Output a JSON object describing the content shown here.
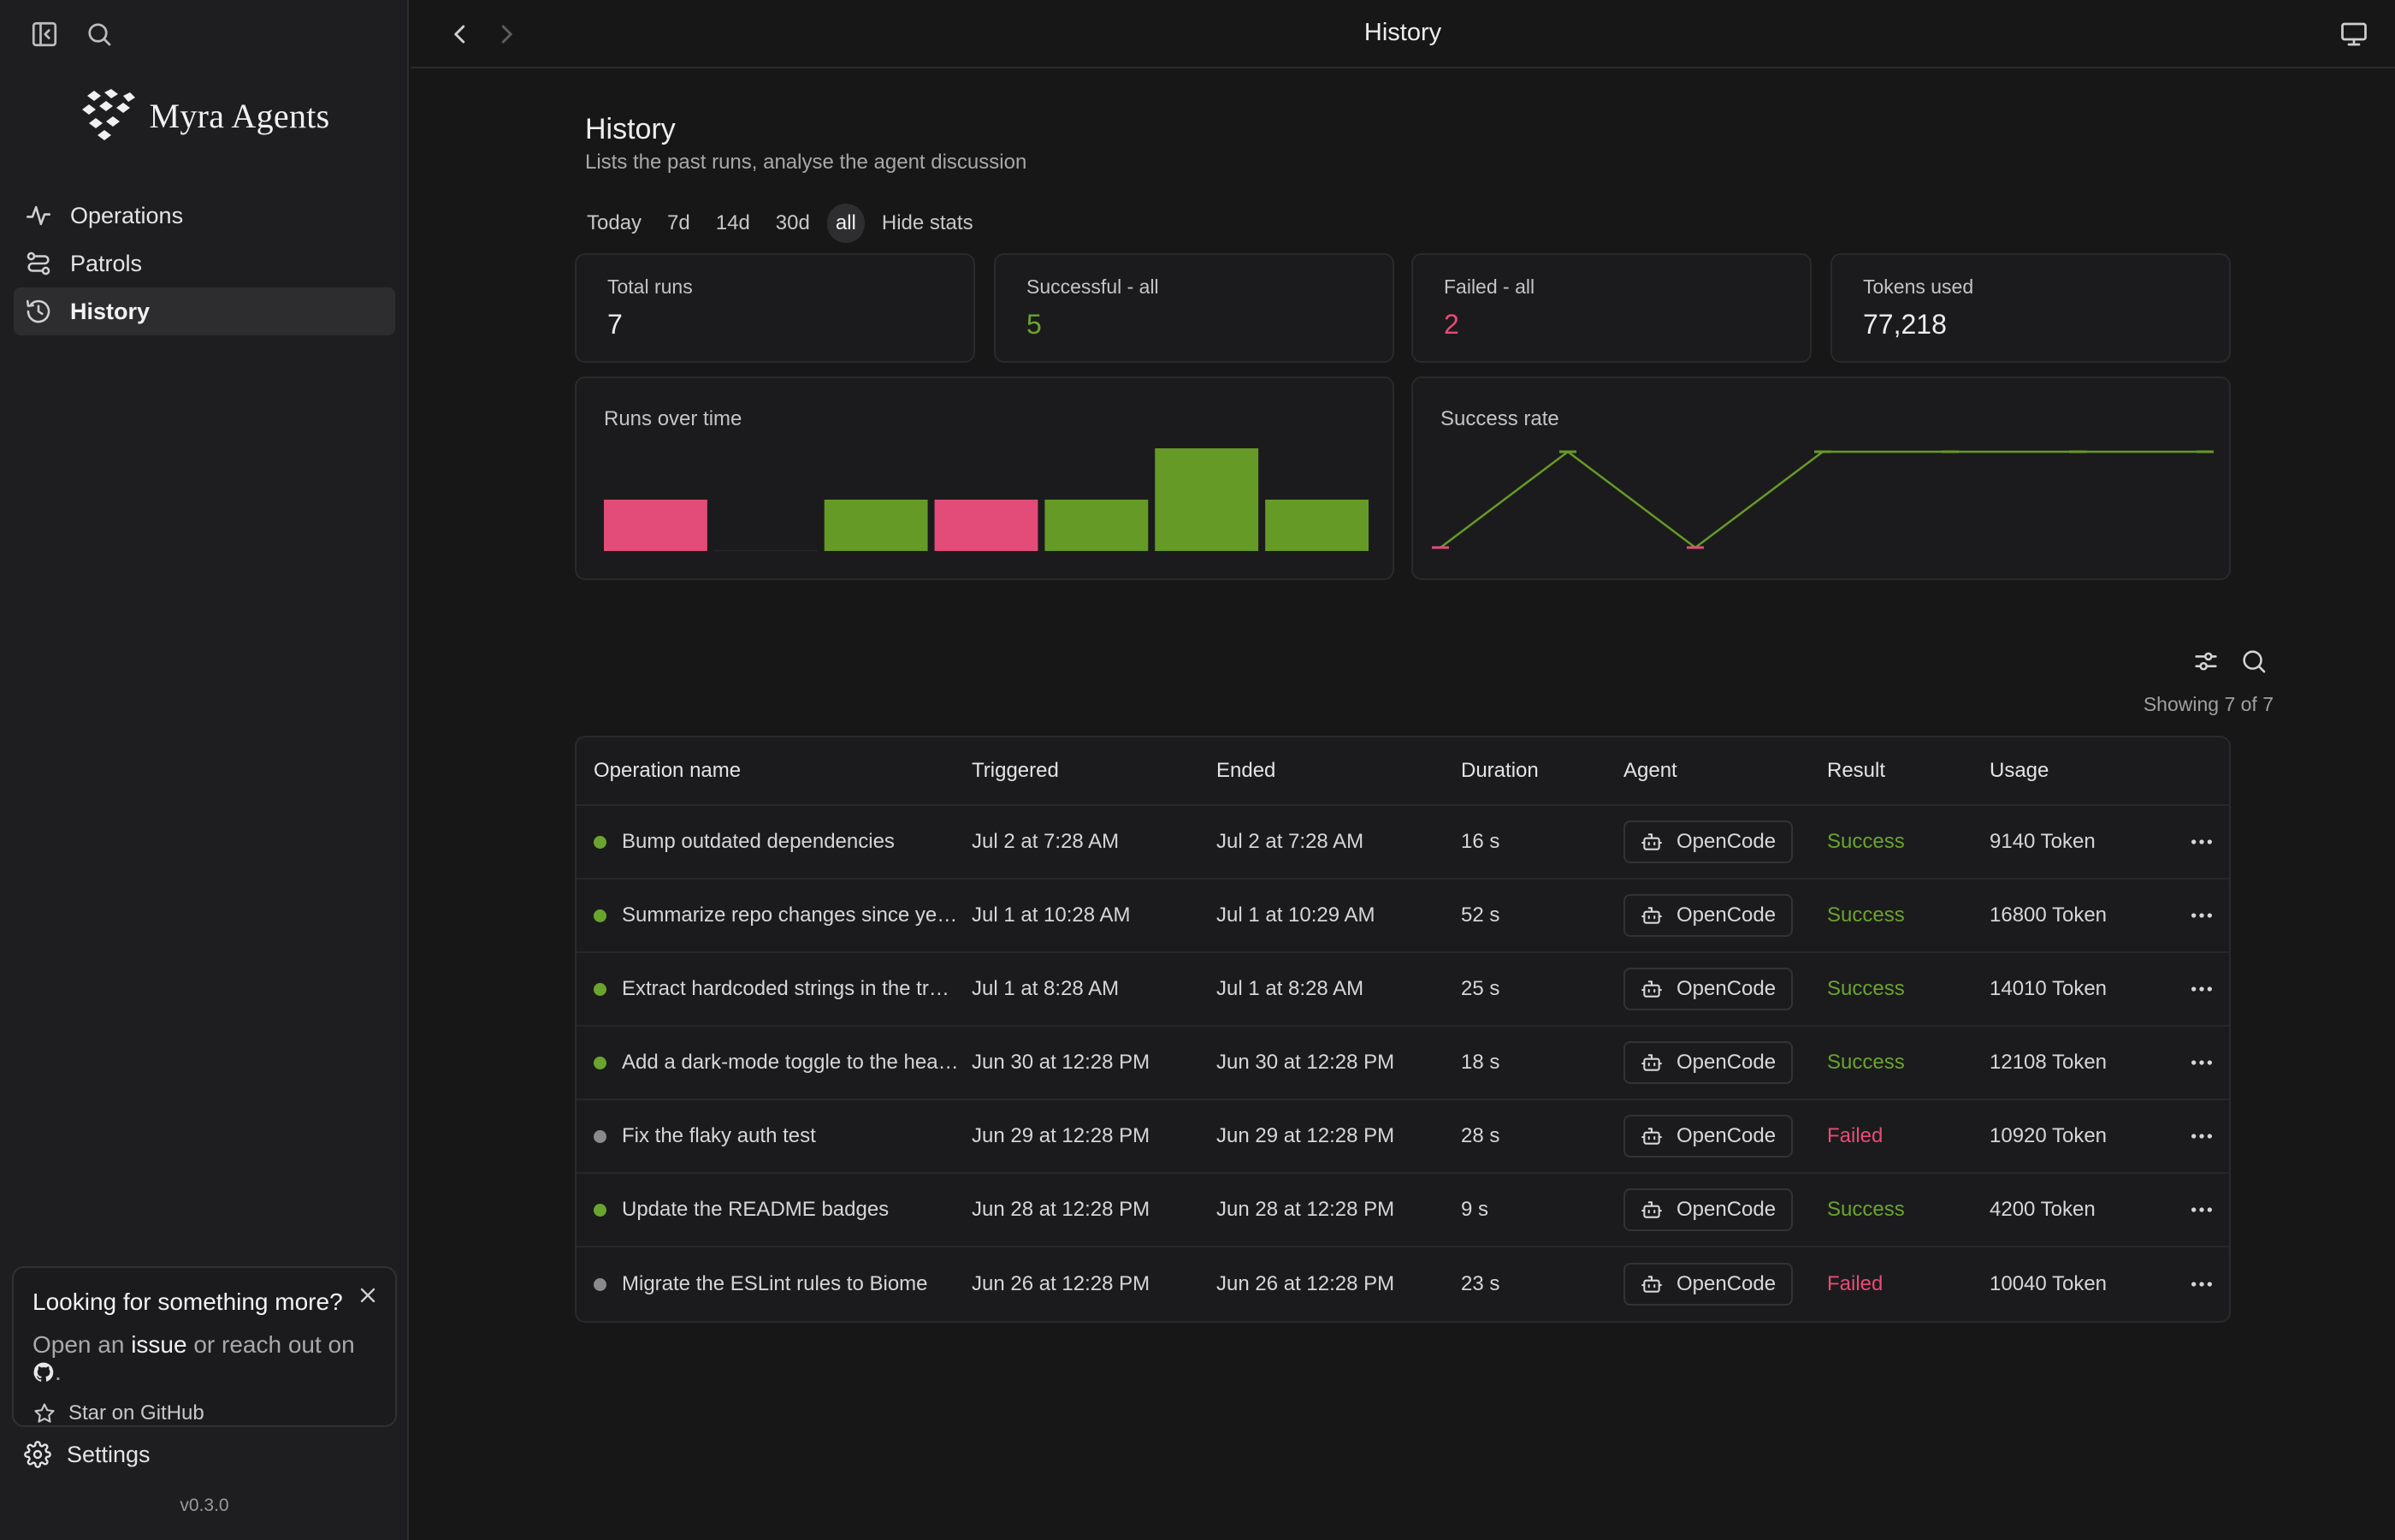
{
  "app": {
    "name": "Myra Agents",
    "version": "v0.3.0"
  },
  "sidebar": {
    "items": [
      {
        "label": "Operations",
        "icon": "activity-icon"
      },
      {
        "label": "Patrols",
        "icon": "route-icon"
      },
      {
        "label": "History",
        "icon": "history-icon",
        "active": true
      }
    ],
    "settings_label": "Settings",
    "promo": {
      "title": "Looking for something more?",
      "text_before": "Open an",
      "link_issue": "issue",
      "text_middle": "or reach out on",
      "text_after": ".",
      "star_label": "Star on GitHub"
    }
  },
  "topbar": {
    "title": "History"
  },
  "page": {
    "title": "History",
    "subtitle": "Lists the past runs, analyse the agent discussion"
  },
  "filters": [
    "Today",
    "7d",
    "14d",
    "30d",
    "all",
    "Hide stats"
  ],
  "active_filter": "all",
  "stats": [
    {
      "label": "Total runs",
      "value": "7"
    },
    {
      "label": "Successful - all",
      "value": "5"
    },
    {
      "label": "Failed - all",
      "value": "2"
    },
    {
      "label": "Tokens used",
      "value": "77,218"
    }
  ],
  "colors": {
    "success": "#6aa42e",
    "failed": "#e84b75",
    "neutral": "#8a8a8a",
    "bar_success": "#669a26",
    "bar_failed": "#e34c78"
  },
  "chart_data": [
    {
      "type": "bar",
      "title": "Runs over time",
      "categories": [
        "",
        "",
        "",
        "",
        "",
        "",
        ""
      ],
      "series": [
        {
          "values": [
            0,
            0,
            1,
            0,
            1,
            2,
            1
          ],
          "color": "#669a26"
        },
        {
          "values": [
            1,
            0,
            0,
            1,
            0,
            0,
            0
          ],
          "color": "#e34c78"
        }
      ],
      "ylim": [
        0,
        2
      ]
    },
    {
      "type": "line",
      "title": "Success rate",
      "values": [
        0,
        1,
        0,
        1,
        1,
        1,
        1
      ],
      "ylim": [
        0,
        1
      ]
    }
  ],
  "table": {
    "showing": "Showing 7 of 7",
    "columns": [
      "Operation name",
      "Triggered",
      "Ended",
      "Duration",
      "Agent",
      "Result",
      "Usage"
    ],
    "rows": [
      {
        "name": "Bump outdated dependencies",
        "triggered": "Jul 2 at 7:28 AM",
        "ended": "Jul 2 at 7:28 AM",
        "duration": "16 s",
        "agent": "OpenCode",
        "result": "Success",
        "usage": "9140 Token",
        "status": "success"
      },
      {
        "name": "Summarize repo changes since yes…",
        "triggered": "Jul 1 at 10:28 AM",
        "ended": "Jul 1 at 10:29 AM",
        "duration": "52 s",
        "agent": "OpenCode",
        "result": "Success",
        "usage": "16800 Token",
        "status": "success"
      },
      {
        "name": "Extract hardcoded strings in the tr…",
        "triggered": "Jul 1 at 8:28 AM",
        "ended": "Jul 1 at 8:28 AM",
        "duration": "25 s",
        "agent": "OpenCode",
        "result": "Success",
        "usage": "14010 Token",
        "status": "success"
      },
      {
        "name": "Add a dark-mode toggle to the hea…",
        "triggered": "Jun 30 at 12:28 PM",
        "ended": "Jun 30 at 12:28 PM",
        "duration": "18 s",
        "agent": "OpenCode",
        "result": "Success",
        "usage": "12108 Token",
        "status": "success"
      },
      {
        "name": "Fix the flaky auth test",
        "triggered": "Jun 29 at 12:28 PM",
        "ended": "Jun 29 at 12:28 PM",
        "duration": "28 s",
        "agent": "OpenCode",
        "result": "Failed",
        "usage": "10920 Token",
        "status": "failed"
      },
      {
        "name": "Update the README badges",
        "triggered": "Jun 28 at 12:28 PM",
        "ended": "Jun 28 at 12:28 PM",
        "duration": "9 s",
        "agent": "OpenCode",
        "result": "Success",
        "usage": "4200 Token",
        "status": "success"
      },
      {
        "name": "Migrate the ESLint rules to Biome",
        "triggered": "Jun 26 at 12:28 PM",
        "ended": "Jun 26 at 12:28 PM",
        "duration": "23 s",
        "agent": "OpenCode",
        "result": "Failed",
        "usage": "10040 Token",
        "status": "failed"
      }
    ]
  }
}
